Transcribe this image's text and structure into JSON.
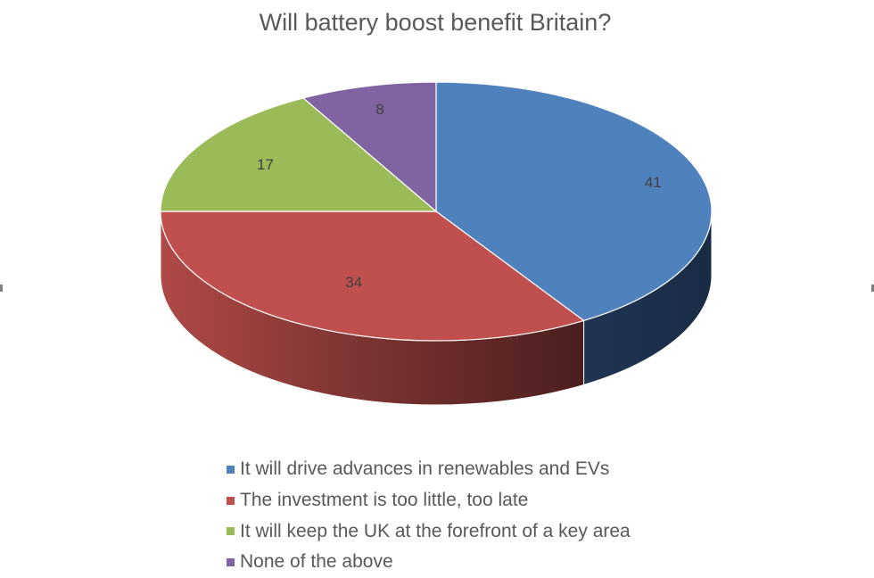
{
  "chart_data": {
    "type": "pie",
    "title": "Will battery boost benefit Britain?",
    "start_angle_deg": 90,
    "direction": "clockwise",
    "three_d": true,
    "legend_position": "bottom",
    "series": [
      {
        "name": "It will drive advances in renewables and EVs",
        "value": 41,
        "label": "41",
        "color": "#4F81BD"
      },
      {
        "name": "The investment is too little, too late",
        "value": 34,
        "label": "34",
        "color": "#C0504D"
      },
      {
        "name": "It will keep the UK at the forefront of a key area",
        "value": 17,
        "label": "17",
        "color": "#9BBB59"
      },
      {
        "name": "None of the above",
        "value": 8,
        "label": "8",
        "color": "#8064A2"
      }
    ]
  }
}
